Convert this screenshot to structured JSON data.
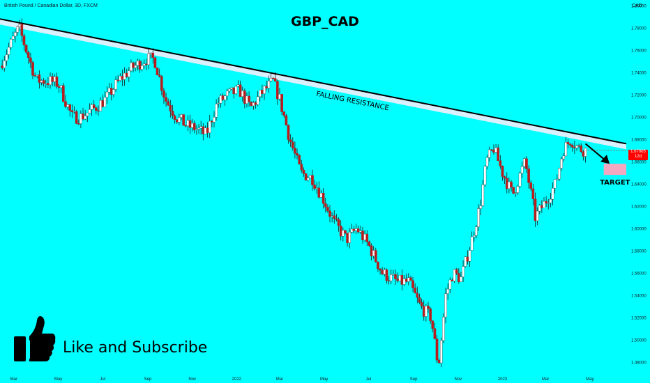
{
  "header": {
    "symbol_line": "British Pound / Canadian Dollar, 3D, FXCM",
    "currency": "CAD"
  },
  "price_tag": {
    "value": "1.67005",
    "sub": "12d"
  },
  "cta": {
    "text": "Like and Subscribe",
    "icon": "thumbs-up-icon"
  },
  "colors": {
    "background": "#00ffff",
    "up_candle": "#ffffff",
    "down_candle": "#b71c1c",
    "wick": "#1a1a1a",
    "resistance_band": "#d9f0ff",
    "target_zone": "#f4a7c0",
    "price_tag": "#ff0000"
  },
  "chart_data": {
    "type": "candlestick",
    "title": "GBP_CAD",
    "timeframe": "3D",
    "ylim": [
      1.47,
      1.8
    ],
    "y_ticks": [
      1.48,
      1.5,
      1.52,
      1.54,
      1.56,
      1.58,
      1.6,
      1.62,
      1.64,
      1.66,
      1.68,
      1.7,
      1.72,
      1.74,
      1.76,
      1.78,
      1.8
    ],
    "y_tick_labels": [
      "1.48000",
      "1.50000",
      "1.52000",
      "1.54000",
      "1.56000",
      "1.58000",
      "1.60000",
      "1.62000",
      "1.64000",
      "1.66000",
      "1.68000",
      "1.70000",
      "1.72000",
      "1.74000",
      "1.76000",
      "1.78000",
      "1.80000"
    ],
    "x_tick_labels": [
      "Mar",
      "May",
      "Jul",
      "Sep",
      "Nov",
      "2022",
      "Mar",
      "May",
      "Jul",
      "Sep",
      "Nov",
      "2023",
      "Mar",
      "May"
    ],
    "x_tick_dates": [
      "2021-03-01",
      "2021-05-01",
      "2021-07-01",
      "2021-09-01",
      "2021-11-01",
      "2022-01-01",
      "2022-03-01",
      "2022-05-01",
      "2022-07-01",
      "2022-09-01",
      "2022-11-01",
      "2023-01-01",
      "2023-03-01",
      "2023-05-01"
    ],
    "x_range": [
      "2021-02-10",
      "2023-06-20"
    ],
    "price_path": [
      {
        "date": "2021-02-10",
        "close": 1.746
      },
      {
        "date": "2021-02-28",
        "close": 1.77
      },
      {
        "date": "2021-03-08",
        "close": 1.78
      },
      {
        "date": "2021-03-20",
        "close": 1.756
      },
      {
        "date": "2021-04-01",
        "close": 1.733
      },
      {
        "date": "2021-04-20",
        "close": 1.732
      },
      {
        "date": "2021-05-01",
        "close": 1.73
      },
      {
        "date": "2021-05-20",
        "close": 1.7
      },
      {
        "date": "2021-06-01",
        "close": 1.7
      },
      {
        "date": "2021-06-20",
        "close": 1.708
      },
      {
        "date": "2021-07-05",
        "close": 1.716
      },
      {
        "date": "2021-07-25",
        "close": 1.734
      },
      {
        "date": "2021-08-10",
        "close": 1.744
      },
      {
        "date": "2021-08-30",
        "close": 1.752
      },
      {
        "date": "2021-09-10",
        "close": 1.752
      },
      {
        "date": "2021-09-25",
        "close": 1.716
      },
      {
        "date": "2021-10-10",
        "close": 1.7
      },
      {
        "date": "2021-10-25",
        "close": 1.692
      },
      {
        "date": "2021-11-05",
        "close": 1.69
      },
      {
        "date": "2021-11-20",
        "close": 1.684
      },
      {
        "date": "2021-12-05",
        "close": 1.712
      },
      {
        "date": "2021-12-20",
        "close": 1.72
      },
      {
        "date": "2022-01-05",
        "close": 1.724
      },
      {
        "date": "2022-01-20",
        "close": 1.708
      },
      {
        "date": "2022-02-05",
        "close": 1.722
      },
      {
        "date": "2022-02-20",
        "close": 1.732
      },
      {
        "date": "2022-03-01",
        "close": 1.716
      },
      {
        "date": "2022-03-15",
        "close": 1.68
      },
      {
        "date": "2022-03-30",
        "close": 1.65
      },
      {
        "date": "2022-04-15",
        "close": 1.645
      },
      {
        "date": "2022-05-01",
        "close": 1.625
      },
      {
        "date": "2022-05-15",
        "close": 1.605
      },
      {
        "date": "2022-06-01",
        "close": 1.59
      },
      {
        "date": "2022-06-15",
        "close": 1.6
      },
      {
        "date": "2022-07-01",
        "close": 1.585
      },
      {
        "date": "2022-07-20",
        "close": 1.56
      },
      {
        "date": "2022-08-10",
        "close": 1.552
      },
      {
        "date": "2022-08-25",
        "close": 1.552
      },
      {
        "date": "2022-09-10",
        "close": 1.53
      },
      {
        "date": "2022-09-25",
        "close": 1.52
      },
      {
        "date": "2022-10-05",
        "close": 1.475
      },
      {
        "date": "2022-10-15",
        "close": 1.54
      },
      {
        "date": "2022-10-25",
        "close": 1.56
      },
      {
        "date": "2022-11-05",
        "close": 1.555
      },
      {
        "date": "2022-11-20",
        "close": 1.59
      },
      {
        "date": "2022-12-01",
        "close": 1.62
      },
      {
        "date": "2022-12-10",
        "close": 1.66
      },
      {
        "date": "2022-12-20",
        "close": 1.672
      },
      {
        "date": "2023-01-01",
        "close": 1.65
      },
      {
        "date": "2023-01-15",
        "close": 1.63
      },
      {
        "date": "2023-02-01",
        "close": 1.66
      },
      {
        "date": "2023-02-15",
        "close": 1.61
      },
      {
        "date": "2023-03-01",
        "close": 1.624
      },
      {
        "date": "2023-03-15",
        "close": 1.64
      },
      {
        "date": "2023-03-25",
        "close": 1.67
      },
      {
        "date": "2023-04-05",
        "close": 1.68
      },
      {
        "date": "2023-04-15",
        "close": 1.672
      },
      {
        "date": "2023-04-25",
        "close": 1.67
      }
    ],
    "resistance_line": {
      "label": "FALLING RESISTANCE",
      "start": {
        "date": "2021-02-10",
        "price": 1.788
      },
      "end": {
        "date": "2023-06-20",
        "price": 1.676
      }
    },
    "target": {
      "label": "TARGET",
      "date_from": "2023-05-20",
      "date_to": "2023-06-20",
      "price_low": 1.648,
      "price_high": 1.658
    },
    "projection_arrow": {
      "from": {
        "date": "2023-04-25",
        "price": 1.676
      },
      "to": {
        "date": "2023-05-28",
        "price": 1.658
      }
    },
    "last_price": 1.67005
  }
}
